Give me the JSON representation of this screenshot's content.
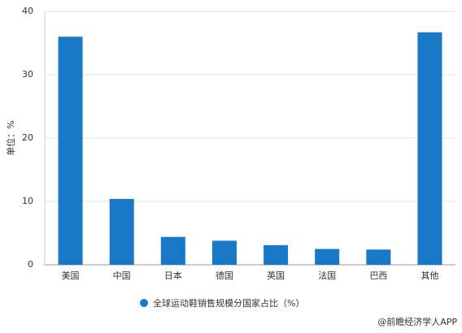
{
  "chart_data": {
    "type": "bar",
    "y_label": "单位：%",
    "categories": [
      "美国",
      "中国",
      "日本",
      "德国",
      "英国",
      "法国",
      "巴西",
      "其他"
    ],
    "series": [
      {
        "name": "全球运动鞋销售规模分国家占比（%）",
        "color": "#1a78c8",
        "values": [
          36,
          10.4,
          4.4,
          3.8,
          3.1,
          2.5,
          2.4,
          36.7
        ]
      }
    ],
    "ylim": [
      0,
      40
    ],
    "yticks": [
      0,
      10,
      20,
      30,
      40
    ],
    "grid": true
  },
  "footer": "@前瞻经济学人APP"
}
